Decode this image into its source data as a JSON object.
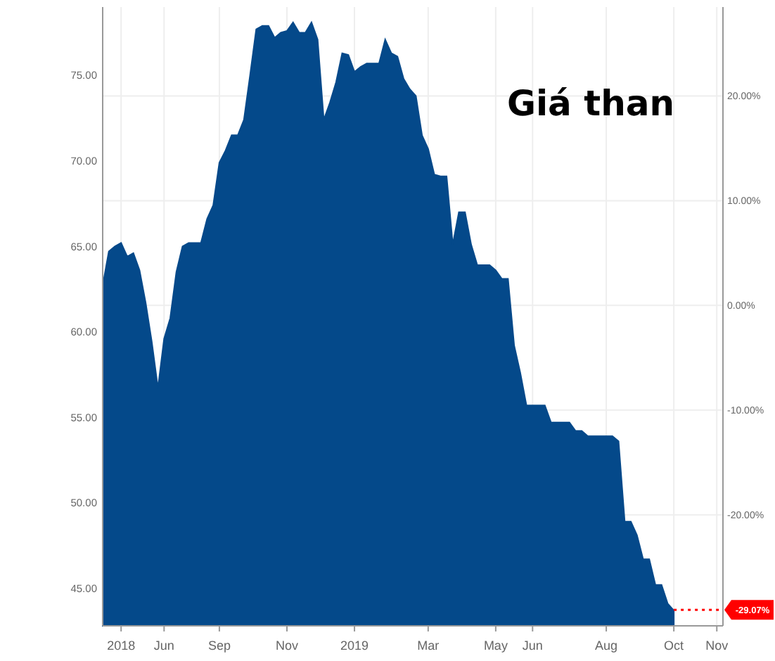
{
  "chart_data": {
    "type": "area",
    "title": "Giá than",
    "categories": [
      null,
      null,
      null,
      "2018",
      null,
      null,
      null,
      null,
      null,
      null,
      "Jun",
      null,
      null,
      null,
      null,
      null,
      null,
      null,
      null,
      "Sep",
      null,
      null,
      null,
      null,
      null,
      null,
      null,
      null,
      null,
      null,
      "Nov",
      null,
      null,
      null,
      null,
      null,
      null,
      null,
      null,
      null,
      null,
      "2019",
      null,
      null,
      null,
      null,
      null,
      null,
      null,
      null,
      null,
      null,
      null,
      "Mar",
      null,
      null,
      null,
      null,
      null,
      null,
      null,
      null,
      null,
      null,
      "May",
      null,
      null,
      null,
      null,
      null,
      "Jun",
      null,
      null,
      null,
      null,
      null,
      null,
      null,
      null,
      null,
      null,
      null,
      "Aug",
      null,
      null,
      null,
      null,
      null,
      null,
      null,
      null,
      null,
      null,
      "Oct",
      null,
      null,
      null,
      null,
      null,
      null,
      "Nov",
      null
    ],
    "series": [
      {
        "color": "#04498a",
        "values": [
          62.7,
          64.7,
          65.0,
          65.2,
          64.4,
          64.6,
          63.6,
          61.7,
          59.4,
          56.7,
          59.6,
          60.8,
          63.5,
          65.0,
          65.2,
          65.2,
          65.2,
          66.6,
          67.4,
          69.9,
          70.6,
          71.5,
          71.5,
          72.4,
          75.0,
          77.7,
          77.9,
          77.9,
          77.2,
          77.5,
          77.6,
          78.1,
          77.5,
          77.5,
          78.1,
          77.1,
          72.4,
          73.4,
          74.6,
          76.3,
          76.2,
          75.2,
          75.5,
          75.7,
          75.7,
          75.7,
          77.1,
          76.3,
          76.1,
          74.8,
          74.2,
          73.8,
          71.5,
          70.7,
          69.2,
          69.1,
          69.1,
          65.1,
          67.0,
          67.0,
          65.1,
          63.9,
          63.9,
          63.9,
          63.6,
          63.1,
          63.1,
          59.2,
          57.6,
          55.7,
          55.7,
          55.7,
          55.7,
          54.7,
          54.7,
          54.7,
          54.7,
          54.2,
          54.2,
          53.9,
          53.9,
          53.9,
          53.9,
          53.9,
          53.6,
          48.9,
          48.9,
          48.1,
          46.7,
          46.7,
          45.2,
          45.2,
          44.1,
          43.7,
          null,
          null,
          null,
          null,
          null,
          null,
          null,
          null
        ]
      }
    ],
    "ylim": [
      42.8,
      79
    ],
    "yticks": [
      {
        "value": 45,
        "label": "45.00"
      },
      {
        "value": 50,
        "label": "50.00"
      },
      {
        "value": 55,
        "label": "55.00"
      },
      {
        "value": 60,
        "label": "60.00"
      },
      {
        "value": 65,
        "label": "65.00"
      },
      {
        "value": 70,
        "label": "70.00"
      },
      {
        "value": 75,
        "label": "75.00"
      }
    ],
    "y2lim": [
      -30.6,
      28.5
    ],
    "y2ticks": [
      {
        "value": -20,
        "label": "-20.00%"
      },
      {
        "value": -10,
        "label": "-10.00%"
      },
      {
        "value": 0,
        "label": "0.00%"
      },
      {
        "value": 10,
        "label": "10.00%"
      },
      {
        "value": 20,
        "label": "20.00%"
      }
    ],
    "ref_lines": [
      {
        "axis": "y2",
        "value": -29.07,
        "label": "-29.07%",
        "color": "#ff0000",
        "line_style": "dotted"
      }
    ],
    "grid": true
  }
}
